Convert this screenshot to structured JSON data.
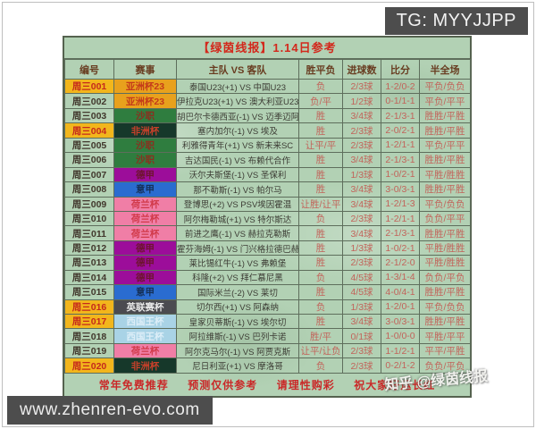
{
  "overlay": {
    "tg_handle": "TG: MYYJJPP",
    "site_url": "www.zhenren-evo.com"
  },
  "table": {
    "title": "【绿茵线报】1.14日参考",
    "headers": [
      "编号",
      "赛事",
      "主队 VS 客队",
      "胜平负",
      "进球数",
      "比分",
      "半全场"
    ],
    "league_colors": {
      "亚洲杯23": {
        "bg": "#e8a11d",
        "fg": "#c43a1a"
      },
      "沙职": {
        "bg": "#2f7d3f",
        "fg": "#8a2f1f"
      },
      "非洲杯": {
        "bg": "#16382a",
        "fg": "#c8402a"
      },
      "德甲": {
        "bg": "#9c0d9a",
        "fg": "#6e1430"
      },
      "意甲": {
        "bg": "#2a6cd0",
        "fg": "#153058"
      },
      "荷兰杯": {
        "bg": "#f07ea6",
        "fg": "#d13a4a"
      },
      "英联赛杯": {
        "bg": "#4b4b50",
        "fg": "#e9e9e9"
      },
      "西国王杯": {
        "bg": "#a9d3e6",
        "fg": "#ddeef8"
      }
    },
    "highlight_color": "#f2b61c",
    "rows": [
      {
        "id": "周三001",
        "hl": true,
        "league": "亚洲杯23",
        "match": "泰国U23(+1) VS 中国U23",
        "wdl": "负",
        "goals": "2/3球",
        "score": "1-2/0-2",
        "ht_ft": "平负/负负"
      },
      {
        "id": "周三002",
        "hl": false,
        "league": "亚洲杯23",
        "match": "伊拉克U23(+1) VS 澳大利亚U23",
        "wdl": "负/平",
        "goals": "1/2球",
        "score": "0-1/1-1",
        "ht_ft": "平负/平平"
      },
      {
        "id": "周三003",
        "hl": false,
        "league": "沙职",
        "match": "胡巴尔卡德西亚(-1) VS 迈季迈阿宽广",
        "wdl": "胜",
        "goals": "3/4球",
        "score": "2-1/3-1",
        "ht_ft": "胜胜/平胜"
      },
      {
        "id": "周三004",
        "hl": true,
        "league": "非洲杯",
        "match": "塞内加尔(-1) VS 埃及",
        "wdl": "胜",
        "goals": "2/3球",
        "score": "2-0/2-1",
        "ht_ft": "胜胜/平胜"
      },
      {
        "id": "周三005",
        "hl": false,
        "league": "沙职",
        "match": "利雅得青年(+1) VS 新未来SC",
        "wdl": "让平/平",
        "goals": "2/3球",
        "score": "1-2/1-1",
        "ht_ft": "平负/平平"
      },
      {
        "id": "周三006",
        "hl": false,
        "league": "沙职",
        "match": "吉达国民(-1) VS 布赖代合作",
        "wdl": "胜",
        "goals": "3/4球",
        "score": "2-1/3-1",
        "ht_ft": "胜胜/平胜"
      },
      {
        "id": "周三007",
        "hl": false,
        "league": "德甲",
        "match": "沃尔夫斯堡(-1) VS 圣保利",
        "wdl": "胜",
        "goals": "1/3球",
        "score": "1-0/2-1",
        "ht_ft": "平胜/胜胜"
      },
      {
        "id": "周三008",
        "hl": false,
        "league": "意甲",
        "match": "那不勒斯(-1) VS 帕尔马",
        "wdl": "胜",
        "goals": "3/4球",
        "score": "3-0/3-1",
        "ht_ft": "胜胜/平胜"
      },
      {
        "id": "周三009",
        "hl": false,
        "league": "荷兰杯",
        "match": "登博思(+2) VS PSV埃因霍温",
        "wdl": "让胜/让平",
        "goals": "3/4球",
        "score": "1-2/1-3",
        "ht_ft": "平负/负负"
      },
      {
        "id": "周三010",
        "hl": false,
        "league": "荷兰杯",
        "match": "阿尔梅勒城(+1) VS 特尔斯达",
        "wdl": "负",
        "goals": "2/3球",
        "score": "1-2/1-1",
        "ht_ft": "负负/平平"
      },
      {
        "id": "周三011",
        "hl": false,
        "league": "荷兰杯",
        "match": "前进之鹰(-1) VS 赫拉克勒斯",
        "wdl": "胜",
        "goals": "3/4球",
        "score": "2-1/3-1",
        "ht_ft": "胜胜/平胜"
      },
      {
        "id": "周三012",
        "hl": false,
        "league": "德甲",
        "match": "霍芬海姆(-1) VS 门兴格拉德巴赫",
        "wdl": "胜",
        "goals": "1/3球",
        "score": "1-0/2-1",
        "ht_ft": "平胜/胜胜"
      },
      {
        "id": "周三013",
        "hl": false,
        "league": "德甲",
        "match": "莱比锡红牛(-1) VS 弗赖堡",
        "wdl": "胜",
        "goals": "2/3球",
        "score": "2-1/2-0",
        "ht_ft": "平胜/胜胜"
      },
      {
        "id": "周三014",
        "hl": false,
        "league": "德甲",
        "match": "科隆(+2) VS 拜仁慕尼黑",
        "wdl": "负",
        "goals": "4/5球",
        "score": "1-3/1-4",
        "ht_ft": "负负/平负"
      },
      {
        "id": "周三015",
        "hl": false,
        "league": "意甲",
        "match": "国际米兰(-2) VS 莱切",
        "wdl": "胜",
        "goals": "4/5球",
        "score": "4-0/4-1",
        "ht_ft": "胜胜/平胜"
      },
      {
        "id": "周三016",
        "hl": true,
        "league": "英联赛杯",
        "match": "切尔西(+1) VS 阿森纳",
        "wdl": "负",
        "goals": "1/3球",
        "score": "1-2/0-1",
        "ht_ft": "平负/负负"
      },
      {
        "id": "周三017",
        "hl": true,
        "league": "西国王杯",
        "match": "皇家贝蒂斯(-1) VS 埃尔切",
        "wdl": "胜",
        "goals": "3/4球",
        "score": "3-0/3-1",
        "ht_ft": "胜胜/平胜"
      },
      {
        "id": "周三018",
        "hl": false,
        "league": "西国王杯",
        "match": "阿拉维斯(-1) VS 巴列卡诺",
        "wdl": "胜/平",
        "goals": "0/1球",
        "score": "1-0/0-0",
        "ht_ft": "平胜/平平"
      },
      {
        "id": "周三019",
        "hl": false,
        "league": "荷兰杯",
        "match": "阿尔克马尔(-1) VS 阿贾克斯",
        "wdl": "让平/让负",
        "goals": "2/3球",
        "score": "1-1/2-1",
        "ht_ft": "平平/平胜"
      },
      {
        "id": "周三020",
        "hl": true,
        "league": "非洲杯",
        "match": "尼日利亚(+1) VS 摩洛哥",
        "wdl": "负",
        "goals": "2/3球",
        "score": "0-2/1-2",
        "ht_ft": "负负/平负"
      }
    ],
    "footer": [
      "常年免费推荐",
      "预测仅供参考",
      "请理性购彩",
      "祝大家好运长红"
    ],
    "watermark": "知乎 @绿茵线报"
  }
}
